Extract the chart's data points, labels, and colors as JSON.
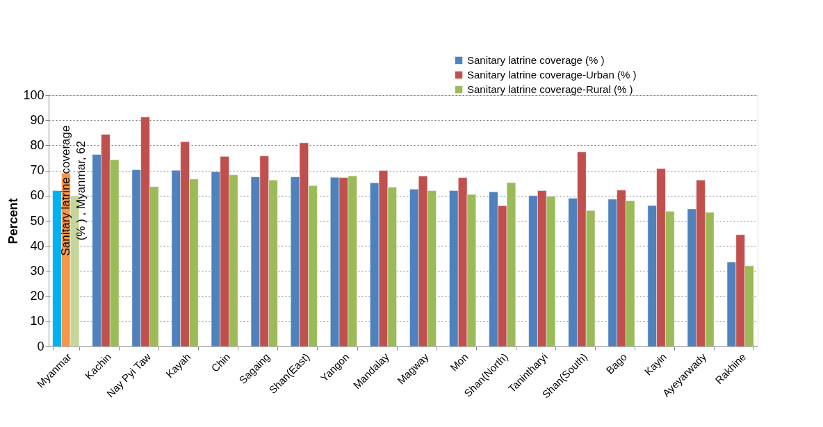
{
  "chart_data": {
    "type": "bar",
    "ylabel": "Percent",
    "categories": [
      "Myanmar",
      "Kachin",
      "Nay Pyi Taw",
      "Kayah",
      "Chin",
      "Sagaing",
      "Shan(East)",
      "Yangon",
      "Mandalay",
      "Magway",
      "Mon",
      "Shan(North)",
      "Tanintharyi",
      "Shan(South)",
      "Bago",
      "Kayin",
      "Ayeyarwady",
      "Rakhine"
    ],
    "series": [
      {
        "name": "Sanitary latrine coverage (% )",
        "color": "#4f81bd",
        "colors": [
          "#00b0f0",
          "#4f81bd",
          "#4f81bd",
          "#4f81bd",
          "#4f81bd",
          "#4f81bd",
          "#4f81bd",
          "#4f81bd",
          "#4f81bd",
          "#4f81bd",
          "#4f81bd",
          "#4f81bd",
          "#4f81bd",
          "#4f81bd",
          "#4f81bd",
          "#4f81bd",
          "#4f81bd",
          "#4f81bd"
        ],
        "values": [
          62,
          76.4,
          70.3,
          70.1,
          69.5,
          67.5,
          67.5,
          67.3,
          65.1,
          62.6,
          62,
          61.5,
          60,
          59,
          58.6,
          56.1,
          54.7,
          33.6
        ]
      },
      {
        "name": "Sanitary latrine coverage-Urban (% )",
        "color": "#c0504d",
        "colors": [
          "#f79646",
          "#c0504d",
          "#c0504d",
          "#c0504d",
          "#c0504d",
          "#c0504d",
          "#c0504d",
          "#c0504d",
          "#c0504d",
          "#c0504d",
          "#c0504d",
          "#c0504d",
          "#c0504d",
          "#c0504d",
          "#c0504d",
          "#c0504d",
          "#c0504d",
          "#c0504d"
        ],
        "values": [
          69,
          84.4,
          91.3,
          81.5,
          75.6,
          75.8,
          81,
          67.2,
          70,
          67.8,
          67.2,
          56,
          62,
          77.4,
          62.2,
          70.8,
          66.2,
          44.5
        ]
      },
      {
        "name": "Sanitary latrine coverage-Rural (% )",
        "color": "#9bbb59",
        "colors": [
          "#c4d79b",
          "#9bbb59",
          "#9bbb59",
          "#9bbb59",
          "#9bbb59",
          "#9bbb59",
          "#9bbb59",
          "#9bbb59",
          "#9bbb59",
          "#9bbb59",
          "#9bbb59",
          "#9bbb59",
          "#9bbb59",
          "#9bbb59",
          "#9bbb59",
          "#9bbb59",
          "#9bbb59",
          "#9bbb59"
        ],
        "values": [
          60,
          74.3,
          63.6,
          66.6,
          68.3,
          66.2,
          64,
          67.9,
          63.4,
          62,
          60.5,
          65.2,
          59.7,
          54.1,
          58,
          53.8,
          53.4,
          32.1
        ]
      }
    ],
    "ylim": [
      0,
      100
    ],
    "yticks": [
      0,
      10,
      20,
      30,
      40,
      50,
      60,
      70,
      80,
      90,
      100
    ],
    "grid": "y",
    "legend": "top right",
    "annotations": [
      {
        "text": "Sanitary latrine coverage (% ) , Myanmar, 62",
        "x": "Myanmar",
        "y": 62
      }
    ]
  }
}
